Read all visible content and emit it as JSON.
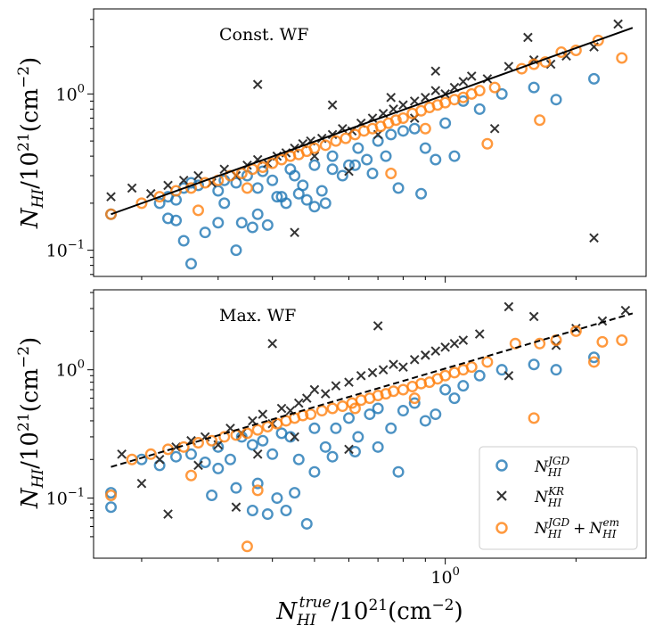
{
  "chart_data": [
    {
      "type": "scatter",
      "panel_label": "Const. WF",
      "xscale": "log",
      "yscale": "log",
      "xlim": [
        0.155,
        2.9
      ],
      "ylim": [
        0.068,
        3.5
      ],
      "ylabel": "N_HI/10^21(cm^-2)",
      "yticks": [
        {
          "value": 0.1,
          "label": "10^-1"
        },
        {
          "value": 1,
          "label": "10^0"
        }
      ],
      "fit_line": {
        "style": "solid-black",
        "x": [
          0.17,
          2.7
        ],
        "y": [
          0.17,
          2.65
        ]
      },
      "series": [
        {
          "name": "JGD",
          "marker": "circle",
          "color": "#1f77b4",
          "x": [
            0.17,
            0.22,
            0.23,
            0.24,
            0.25,
            0.26,
            0.27,
            0.3,
            0.31,
            0.33,
            0.35,
            0.37,
            0.38,
            0.4,
            0.42,
            0.44,
            0.45,
            0.47,
            0.5,
            0.52,
            0.55,
            0.58,
            0.6,
            0.63,
            0.66,
            0.7,
            0.73,
            0.75,
            0.8,
            0.85,
            0.9,
            0.95,
            1.0,
            1.05,
            1.1,
            1.2,
            1.35,
            1.6,
            1.8,
            2.2,
            0.23,
            0.25,
            0.3,
            0.34,
            0.36,
            0.39,
            0.43,
            0.48,
            0.53,
            0.28,
            0.31,
            0.37,
            0.41,
            0.46,
            0.5,
            0.55,
            0.62,
            0.68,
            0.78,
            0.88,
            0.24,
            0.26,
            0.33
          ],
          "y": [
            0.17,
            0.2,
            0.22,
            0.21,
            0.25,
            0.27,
            0.26,
            0.24,
            0.28,
            0.27,
            0.3,
            0.25,
            0.32,
            0.28,
            0.22,
            0.33,
            0.3,
            0.26,
            0.35,
            0.24,
            0.4,
            0.3,
            0.35,
            0.45,
            0.38,
            0.5,
            0.4,
            0.55,
            0.58,
            0.6,
            0.45,
            0.38,
            0.65,
            0.4,
            0.9,
            0.8,
            1.0,
            1.1,
            0.92,
            1.25,
            0.16,
            0.115,
            0.15,
            0.15,
            0.14,
            0.145,
            0.2,
            0.21,
            0.2,
            0.13,
            0.2,
            0.17,
            0.22,
            0.23,
            0.19,
            0.33,
            0.35,
            0.31,
            0.25,
            0.23,
            0.155,
            0.082,
            0.1
          ]
        },
        {
          "name": "KR",
          "marker": "x",
          "color": "#333333",
          "x": [
            0.17,
            0.19,
            0.21,
            0.23,
            0.25,
            0.27,
            0.29,
            0.31,
            0.33,
            0.35,
            0.37,
            0.39,
            0.41,
            0.43,
            0.45,
            0.47,
            0.49,
            0.52,
            0.55,
            0.58,
            0.61,
            0.64,
            0.68,
            0.72,
            0.76,
            0.8,
            0.85,
            0.9,
            0.95,
            1.0,
            1.05,
            1.1,
            1.15,
            1.25,
            1.4,
            1.6,
            1.75,
            1.9,
            2.2,
            2.5,
            0.37,
            0.55,
            0.75,
            0.95,
            1.3,
            1.55,
            2.2,
            0.45,
            0.5,
            0.6,
            0.7,
            0.85
          ],
          "y": [
            0.22,
            0.25,
            0.23,
            0.26,
            0.28,
            0.3,
            0.27,
            0.33,
            0.3,
            0.35,
            0.38,
            0.36,
            0.4,
            0.42,
            0.45,
            0.48,
            0.5,
            0.52,
            0.55,
            0.6,
            0.58,
            0.65,
            0.7,
            0.75,
            0.8,
            0.85,
            0.9,
            0.95,
            1.05,
            1.0,
            1.1,
            1.2,
            1.3,
            1.25,
            1.5,
            1.65,
            1.55,
            1.75,
            2.0,
            2.8,
            1.15,
            0.85,
            0.95,
            1.4,
            0.6,
            2.3,
            0.12,
            0.13,
            0.4,
            0.32,
            0.55,
            0.7
          ]
        },
        {
          "name": "JGD+em",
          "marker": "circle",
          "color": "#ff7f0e",
          "x": [
            0.17,
            0.2,
            0.22,
            0.24,
            0.26,
            0.28,
            0.3,
            0.32,
            0.34,
            0.36,
            0.38,
            0.4,
            0.42,
            0.44,
            0.46,
            0.48,
            0.5,
            0.53,
            0.56,
            0.59,
            0.62,
            0.65,
            0.68,
            0.71,
            0.74,
            0.77,
            0.8,
            0.84,
            0.88,
            0.92,
            0.96,
            1.0,
            1.05,
            1.1,
            1.15,
            1.2,
            1.3,
            1.5,
            1.6,
            1.7,
            1.85,
            2.0,
            2.25,
            2.55,
            1.25,
            1.65,
            0.75,
            0.9,
            0.27,
            0.35
          ],
          "y": [
            0.17,
            0.2,
            0.22,
            0.24,
            0.25,
            0.27,
            0.28,
            0.3,
            0.31,
            0.33,
            0.34,
            0.36,
            0.38,
            0.4,
            0.41,
            0.43,
            0.45,
            0.47,
            0.5,
            0.52,
            0.55,
            0.58,
            0.6,
            0.62,
            0.65,
            0.68,
            0.7,
            0.75,
            0.78,
            0.82,
            0.85,
            0.88,
            0.92,
            0.95,
            1.0,
            1.05,
            1.1,
            1.45,
            1.55,
            1.6,
            1.85,
            1.9,
            2.2,
            1.7,
            0.48,
            0.68,
            0.31,
            0.6,
            0.18,
            0.25
          ]
        }
      ]
    },
    {
      "type": "scatter",
      "panel_label": "Max. WF",
      "xscale": "log",
      "yscale": "log",
      "xlim": [
        0.155,
        2.9
      ],
      "ylim": [
        0.034,
        4.2
      ],
      "xlabel": "N_HI^true/10^21(cm^-2)",
      "ylabel": "N_HI/10^21(cm^-2)",
      "xticks": [
        {
          "value": 1,
          "label": "10^0"
        }
      ],
      "yticks": [
        {
          "value": 0.1,
          "label": "10^-1"
        },
        {
          "value": 1,
          "label": "10^0"
        }
      ],
      "fit_line": {
        "style": "dashed-black",
        "x": [
          0.17,
          2.7
        ],
        "y": [
          0.175,
          2.75
        ]
      },
      "legend": {
        "position": "lower-right",
        "entries": [
          "N_HI^JGD",
          "N_HI^KR",
          "N_HI^JGD + N_HI^em"
        ]
      },
      "series": [
        {
          "name": "JGD",
          "marker": "circle",
          "color": "#1f77b4",
          "x": [
            0.17,
            0.2,
            0.22,
            0.24,
            0.26,
            0.28,
            0.3,
            0.32,
            0.34,
            0.36,
            0.38,
            0.4,
            0.42,
            0.44,
            0.46,
            0.5,
            0.53,
            0.56,
            0.6,
            0.63,
            0.67,
            0.7,
            0.75,
            0.8,
            0.85,
            0.9,
            0.95,
            1.0,
            1.05,
            1.1,
            1.2,
            1.35,
            1.6,
            1.8,
            2.2,
            0.17,
            0.29,
            0.33,
            0.36,
            0.39,
            0.43,
            0.48,
            0.3,
            0.37,
            0.41,
            0.45,
            0.5,
            0.55,
            0.62,
            0.7,
            0.78
          ],
          "y": [
            0.085,
            0.2,
            0.18,
            0.21,
            0.22,
            0.19,
            0.25,
            0.2,
            0.3,
            0.26,
            0.28,
            0.22,
            0.32,
            0.3,
            0.2,
            0.35,
            0.25,
            0.35,
            0.42,
            0.3,
            0.45,
            0.5,
            0.35,
            0.48,
            0.55,
            0.4,
            0.45,
            0.7,
            0.6,
            0.75,
            0.9,
            1.0,
            1.1,
            1.0,
            1.25,
            0.11,
            0.105,
            0.12,
            0.08,
            0.075,
            0.08,
            0.063,
            0.17,
            0.13,
            0.1,
            0.11,
            0.16,
            0.21,
            0.23,
            0.25,
            0.16
          ]
        },
        {
          "name": "KR",
          "marker": "x",
          "color": "#333333",
          "x": [
            0.18,
            0.2,
            0.22,
            0.24,
            0.26,
            0.28,
            0.3,
            0.32,
            0.34,
            0.36,
            0.38,
            0.4,
            0.42,
            0.44,
            0.46,
            0.48,
            0.5,
            0.53,
            0.56,
            0.6,
            0.64,
            0.68,
            0.72,
            0.76,
            0.8,
            0.85,
            0.9,
            0.95,
            1.0,
            1.05,
            1.1,
            1.2,
            1.4,
            1.6,
            1.8,
            2.0,
            2.3,
            2.6,
            0.4,
            0.7,
            0.9,
            1.4,
            0.23,
            0.27,
            0.33,
            0.37,
            0.45,
            0.6
          ],
          "y": [
            0.22,
            0.13,
            0.2,
            0.25,
            0.28,
            0.3,
            0.26,
            0.35,
            0.32,
            0.4,
            0.45,
            0.38,
            0.5,
            0.48,
            0.55,
            0.6,
            0.7,
            0.65,
            0.75,
            0.8,
            0.9,
            0.95,
            1.0,
            1.1,
            1.05,
            1.2,
            1.3,
            1.4,
            1.5,
            1.6,
            1.7,
            1.9,
            3.1,
            2.6,
            1.55,
            2.1,
            2.4,
            2.9,
            1.6,
            2.2,
            1.3,
            0.9,
            0.075,
            0.18,
            0.085,
            0.22,
            0.3,
            0.24
          ]
        },
        {
          "name": "JGD+em",
          "marker": "circle",
          "color": "#ff7f0e",
          "x": [
            0.17,
            0.19,
            0.21,
            0.23,
            0.25,
            0.27,
            0.29,
            0.31,
            0.33,
            0.35,
            0.37,
            0.39,
            0.41,
            0.43,
            0.45,
            0.47,
            0.49,
            0.52,
            0.55,
            0.58,
            0.61,
            0.64,
            0.67,
            0.7,
            0.73,
            0.76,
            0.8,
            0.84,
            0.88,
            0.92,
            0.96,
            1.0,
            1.05,
            1.1,
            1.15,
            1.25,
            1.45,
            1.65,
            1.8,
            2.0,
            2.3,
            2.55,
            1.6,
            2.2,
            0.35,
            0.37,
            0.26,
            0.62,
            0.85
          ],
          "y": [
            0.105,
            0.2,
            0.22,
            0.24,
            0.25,
            0.27,
            0.28,
            0.3,
            0.31,
            0.32,
            0.34,
            0.36,
            0.38,
            0.4,
            0.42,
            0.44,
            0.45,
            0.48,
            0.5,
            0.52,
            0.55,
            0.58,
            0.6,
            0.63,
            0.65,
            0.68,
            0.7,
            0.74,
            0.78,
            0.8,
            0.85,
            0.9,
            0.95,
            1.0,
            1.05,
            1.15,
            1.6,
            1.6,
            1.7,
            2.0,
            1.65,
            1.7,
            0.42,
            1.15,
            0.042,
            0.115,
            0.15,
            0.5,
            0.6
          ]
        }
      ]
    }
  ],
  "legend_labels": {
    "jgd": {
      "sym": "N",
      "sub": "HI",
      "sup": "JGD"
    },
    "kr": {
      "sym": "N",
      "sub": "HI",
      "sup": "KR"
    },
    "sum": {
      "sym": "N",
      "sub": "HI",
      "sup": "JGD",
      "plus": "+",
      "sym2": "N",
      "sub2": "HI",
      "sup2": "em"
    }
  }
}
